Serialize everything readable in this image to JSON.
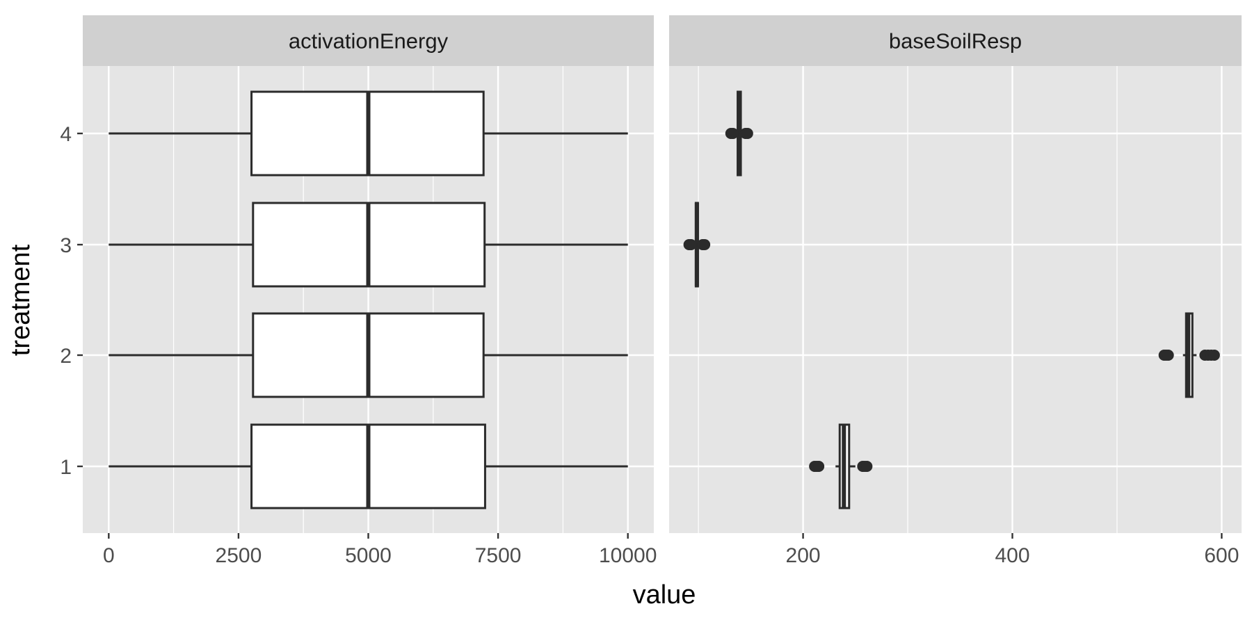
{
  "chart_data": {
    "type": "boxplot",
    "xlabel": "value",
    "ylabel": "treatment",
    "categories": [
      "1",
      "2",
      "3",
      "4"
    ],
    "colors": {
      "panel_bg": "#e5e5e5",
      "strip_bg": "#d0d0d0",
      "grid": "#ffffff",
      "box_fill": "#ffffff",
      "box_stroke": "#2b2b2b",
      "text": "#1a1a1a",
      "tick_text": "#4d4d4d",
      "tick": "#333333"
    },
    "panels": [
      {
        "strip_label": "activationEnergy",
        "xlim": [
          -500,
          10500
        ],
        "x_ticks": [
          0,
          2500,
          5000,
          7500,
          10000
        ],
        "x_tick_labels": [
          "0",
          "2500",
          "5000",
          "7500",
          "10000"
        ],
        "x_minor_ticks": [
          1250,
          3750,
          6250,
          8750
        ],
        "boxes": [
          {
            "treatment": "1",
            "whisker_low": 0,
            "q1": 2750,
            "median": 5000,
            "q3": 7250,
            "whisker_high": 10000,
            "outliers": []
          },
          {
            "treatment": "2",
            "whisker_low": 0,
            "q1": 2780,
            "median": 5000,
            "q3": 7220,
            "whisker_high": 10000,
            "outliers": []
          },
          {
            "treatment": "3",
            "whisker_low": 0,
            "q1": 2780,
            "median": 5000,
            "q3": 7240,
            "whisker_high": 10000,
            "outliers": []
          },
          {
            "treatment": "4",
            "whisker_low": 0,
            "q1": 2750,
            "median": 5000,
            "q3": 7220,
            "whisker_high": 10000,
            "outliers": []
          }
        ]
      },
      {
        "strip_label": "baseSoilResp",
        "xlim": [
          72,
          619
        ],
        "x_ticks": [
          200,
          400,
          600
        ],
        "x_tick_labels": [
          "200",
          "400",
          "600"
        ],
        "x_minor_ticks": [
          100,
          300,
          500
        ],
        "boxes": [
          {
            "treatment": "1",
            "whisker_low": 231,
            "q1": 235,
            "median": 239,
            "q3": 244,
            "whisker_high": 250,
            "outliers": [
              211,
              213,
              215,
              257,
              259,
              261
            ]
          },
          {
            "treatment": "2",
            "whisker_low": 563,
            "q1": 566,
            "median": 568,
            "q3": 572,
            "whisker_high": 576,
            "outliers": [
              545,
              547,
              549,
              584,
              587,
              590,
              593
            ]
          },
          {
            "treatment": "3",
            "whisker_low": 95,
            "q1": 97.5,
            "median": 98.5,
            "q3": 99.5,
            "whisker_high": 102,
            "outliers": [
              91,
              93,
              104,
              106
            ]
          },
          {
            "treatment": "4",
            "whisker_low": 135,
            "q1": 137.5,
            "median": 139,
            "q3": 140.5,
            "whisker_high": 143,
            "outliers": [
              131,
              133,
              145,
              147
            ]
          }
        ]
      }
    ]
  }
}
